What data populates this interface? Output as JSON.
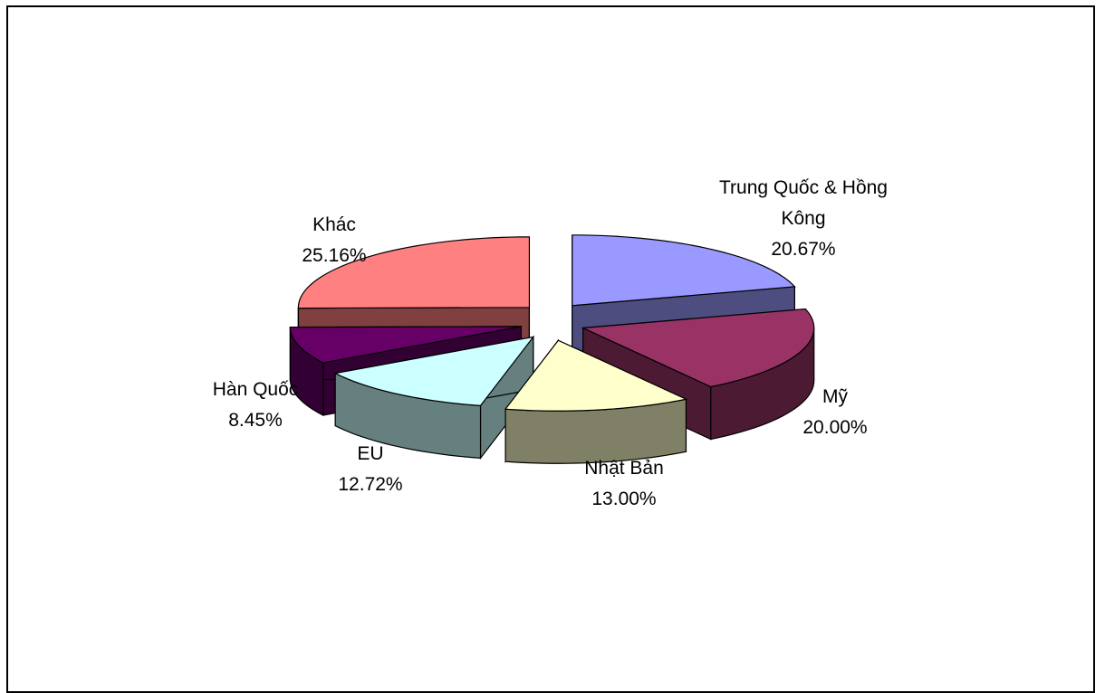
{
  "chart_data": {
    "type": "pie",
    "style": "3d-exploded",
    "title": "",
    "legend": "none",
    "slices": [
      {
        "label_lines": [
          "Trung Quốc & Hồng",
          "Kông"
        ],
        "value_label": "20.67%",
        "value": 20.67,
        "colors": {
          "top": "#9999FF",
          "side": "#4D4D80"
        }
      },
      {
        "label_lines": [
          "Mỹ"
        ],
        "value_label": "20.00%",
        "value": 20.0,
        "colors": {
          "top": "#993366",
          "side": "#4D1A33"
        }
      },
      {
        "label_lines": [
          "Nhật Bản"
        ],
        "value_label": "13.00%",
        "value": 13.0,
        "colors": {
          "top": "#FFFFCC",
          "side": "#808066"
        }
      },
      {
        "label_lines": [
          "EU"
        ],
        "value_label": "12.72%",
        "value": 12.72,
        "colors": {
          "top": "#CCFFFF",
          "side": "#668080"
        }
      },
      {
        "label_lines": [
          "Hàn Quốc"
        ],
        "value_label": "8.45%",
        "value": 8.45,
        "colors": {
          "top": "#660066",
          "side": "#330033"
        }
      },
      {
        "label_lines": [
          "Khác"
        ],
        "value_label": "25.16%",
        "value": 25.16,
        "colors": {
          "top": "#FF8080",
          "side": "#804040"
        }
      }
    ]
  }
}
